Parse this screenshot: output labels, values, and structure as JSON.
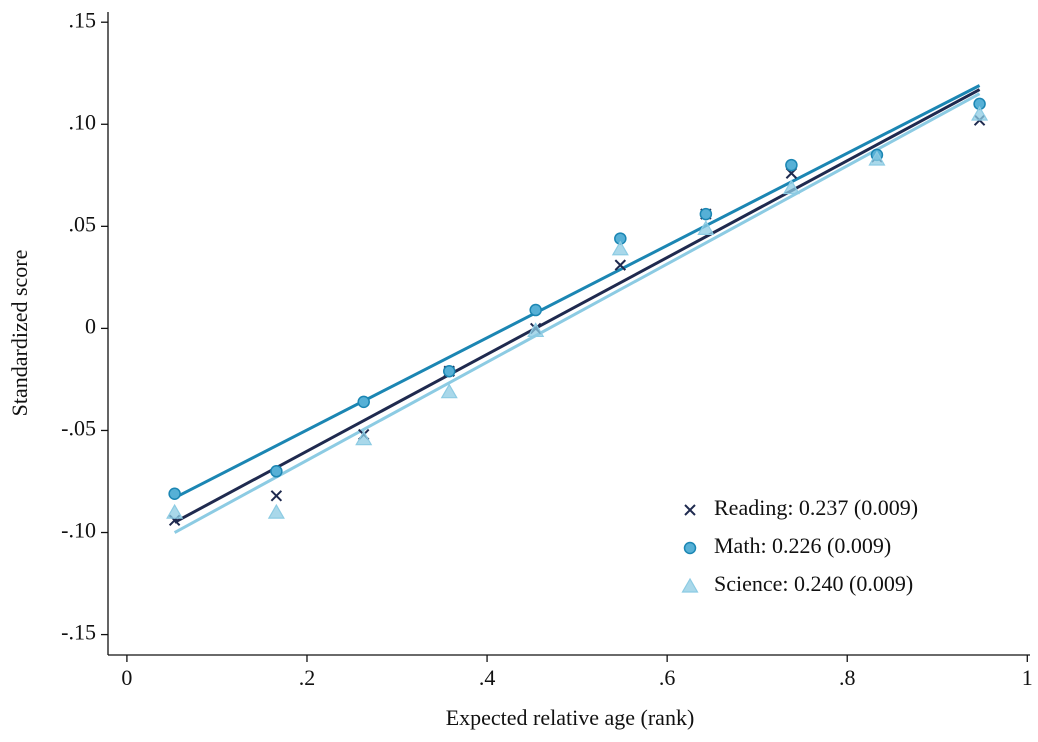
{
  "chart_data": {
    "type": "scatter",
    "x_label": "Expected relative age (rank)",
    "y_label": "Standardized score",
    "xlim": [
      -0.021,
      1.003
    ],
    "ylim": [
      -0.16,
      0.155
    ],
    "xticks": [
      0,
      {
        "value": 0.2,
        "label": ".2"
      },
      {
        "value": 0.4,
        "label": ".4"
      },
      {
        "value": 0.6,
        "label": ".6"
      },
      {
        "value": 0.8,
        "label": ".8"
      },
      1
    ],
    "yticks": [
      {
        "value": -0.15,
        "label": "-.15"
      },
      {
        "value": -0.1,
        "label": "-.10"
      },
      {
        "value": -0.05,
        "label": "-.05"
      },
      0,
      {
        "value": 0.05,
        "label": ".05"
      },
      {
        "value": 0.1,
        "label": ".10"
      },
      {
        "value": 0.15,
        "label": ".15"
      }
    ],
    "grid": false,
    "legend": "lower right",
    "x": [
      0.053,
      0.166,
      0.263,
      0.358,
      0.454,
      0.548,
      0.643,
      0.738,
      0.833,
      0.947
    ],
    "series": [
      {
        "name": "Reading: 0.237 (0.009)",
        "color": "#1f2a4f",
        "marker": "x",
        "values": [
          -0.094,
          -0.082,
          -0.052,
          -0.021,
          0.0,
          0.031,
          0.056,
          0.076,
          0.084,
          0.102
        ],
        "fit": {
          "x": [
            0.053,
            0.947
          ],
          "values": [
            -0.095,
            0.117
          ]
        }
      },
      {
        "name": "Math: 0.226 (0.009)",
        "color": "#1b86b3",
        "marker": "circle",
        "values": [
          -0.081,
          -0.07,
          -0.036,
          -0.021,
          0.009,
          0.044,
          0.056,
          0.08,
          0.085,
          0.11
        ],
        "fit": {
          "x": [
            0.053,
            0.947
          ],
          "values": [
            -0.083,
            0.119
          ]
        }
      },
      {
        "name": "Science: 0.240 (0.009)",
        "color": "#8ccbe3",
        "marker": "triangle",
        "values": [
          -0.09,
          -0.09,
          -0.054,
          -0.031,
          -0.001,
          0.039,
          0.049,
          0.069,
          0.083,
          0.105
        ],
        "fit": {
          "x": [
            0.053,
            0.947
          ],
          "values": [
            -0.1,
            0.115
          ]
        }
      }
    ]
  }
}
